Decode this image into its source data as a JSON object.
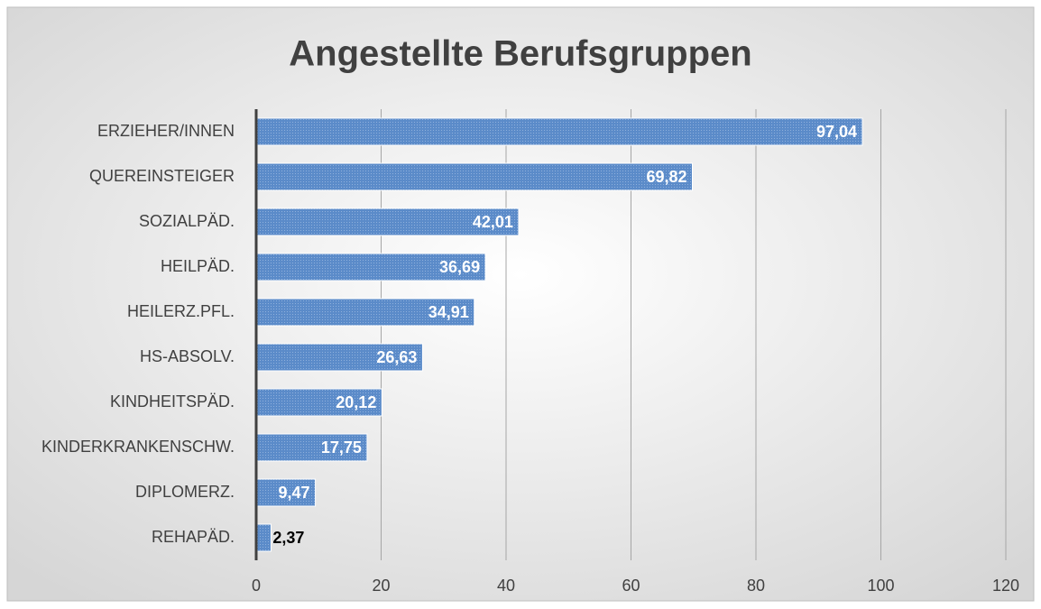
{
  "chart_data": {
    "type": "barh",
    "title": "Angestellte Berufsgruppen",
    "categories": [
      "ERZIEHER/INNEN",
      "QUEREINSTEIGER",
      "SOZIALPÄD.",
      "HEILPÄD.",
      "HEILERZ.PFL.",
      "HS-ABSOLV.",
      "KINDHEITSPÄD.",
      "KINDERKRANKENSCHW.",
      "DIPLOMERZ.",
      "REHAPÄD."
    ],
    "values": [
      97.04,
      69.82,
      42.01,
      36.69,
      34.91,
      26.63,
      20.12,
      17.75,
      9.47,
      2.37
    ],
    "value_labels": [
      "97,04",
      "69,82",
      "42,01",
      "36,69",
      "34,91",
      "26,63",
      "20,12",
      "17,75",
      "9,47",
      "2,37"
    ],
    "color": "#5b8bc9",
    "xlim": [
      0,
      120
    ],
    "xticks": [
      0,
      20,
      40,
      60,
      80,
      100,
      120
    ],
    "grid": true
  }
}
